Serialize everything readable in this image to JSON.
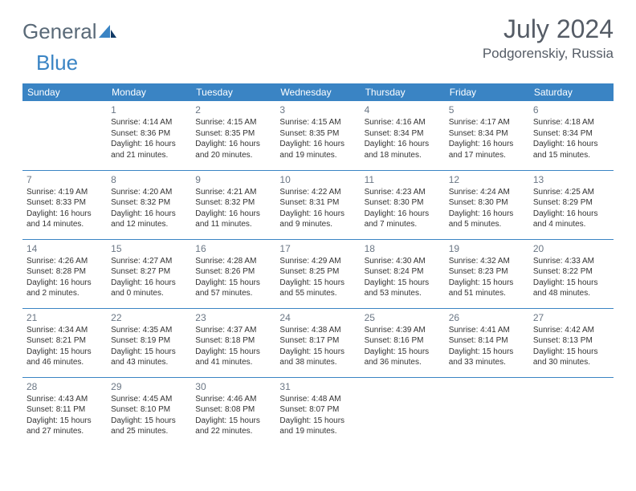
{
  "logo": {
    "text1": "General",
    "text2": "Blue"
  },
  "title": {
    "month": "July 2024",
    "location": "Podgorenskiy, Russia"
  },
  "colors": {
    "header_bg": "#3a84c4",
    "border": "#3a84c4",
    "text": "#333333",
    "muted": "#6b7785"
  },
  "daynames": [
    "Sunday",
    "Monday",
    "Tuesday",
    "Wednesday",
    "Thursday",
    "Friday",
    "Saturday"
  ],
  "weeks": [
    [
      null,
      {
        "n": "1",
        "sr": "Sunrise: 4:14 AM",
        "ss": "Sunset: 8:36 PM",
        "dl1": "Daylight: 16 hours",
        "dl2": "and 21 minutes."
      },
      {
        "n": "2",
        "sr": "Sunrise: 4:15 AM",
        "ss": "Sunset: 8:35 PM",
        "dl1": "Daylight: 16 hours",
        "dl2": "and 20 minutes."
      },
      {
        "n": "3",
        "sr": "Sunrise: 4:15 AM",
        "ss": "Sunset: 8:35 PM",
        "dl1": "Daylight: 16 hours",
        "dl2": "and 19 minutes."
      },
      {
        "n": "4",
        "sr": "Sunrise: 4:16 AM",
        "ss": "Sunset: 8:34 PM",
        "dl1": "Daylight: 16 hours",
        "dl2": "and 18 minutes."
      },
      {
        "n": "5",
        "sr": "Sunrise: 4:17 AM",
        "ss": "Sunset: 8:34 PM",
        "dl1": "Daylight: 16 hours",
        "dl2": "and 17 minutes."
      },
      {
        "n": "6",
        "sr": "Sunrise: 4:18 AM",
        "ss": "Sunset: 8:34 PM",
        "dl1": "Daylight: 16 hours",
        "dl2": "and 15 minutes."
      }
    ],
    [
      {
        "n": "7",
        "sr": "Sunrise: 4:19 AM",
        "ss": "Sunset: 8:33 PM",
        "dl1": "Daylight: 16 hours",
        "dl2": "and 14 minutes."
      },
      {
        "n": "8",
        "sr": "Sunrise: 4:20 AM",
        "ss": "Sunset: 8:32 PM",
        "dl1": "Daylight: 16 hours",
        "dl2": "and 12 minutes."
      },
      {
        "n": "9",
        "sr": "Sunrise: 4:21 AM",
        "ss": "Sunset: 8:32 PM",
        "dl1": "Daylight: 16 hours",
        "dl2": "and 11 minutes."
      },
      {
        "n": "10",
        "sr": "Sunrise: 4:22 AM",
        "ss": "Sunset: 8:31 PM",
        "dl1": "Daylight: 16 hours",
        "dl2": "and 9 minutes."
      },
      {
        "n": "11",
        "sr": "Sunrise: 4:23 AM",
        "ss": "Sunset: 8:30 PM",
        "dl1": "Daylight: 16 hours",
        "dl2": "and 7 minutes."
      },
      {
        "n": "12",
        "sr": "Sunrise: 4:24 AM",
        "ss": "Sunset: 8:30 PM",
        "dl1": "Daylight: 16 hours",
        "dl2": "and 5 minutes."
      },
      {
        "n": "13",
        "sr": "Sunrise: 4:25 AM",
        "ss": "Sunset: 8:29 PM",
        "dl1": "Daylight: 16 hours",
        "dl2": "and 4 minutes."
      }
    ],
    [
      {
        "n": "14",
        "sr": "Sunrise: 4:26 AM",
        "ss": "Sunset: 8:28 PM",
        "dl1": "Daylight: 16 hours",
        "dl2": "and 2 minutes."
      },
      {
        "n": "15",
        "sr": "Sunrise: 4:27 AM",
        "ss": "Sunset: 8:27 PM",
        "dl1": "Daylight: 16 hours",
        "dl2": "and 0 minutes."
      },
      {
        "n": "16",
        "sr": "Sunrise: 4:28 AM",
        "ss": "Sunset: 8:26 PM",
        "dl1": "Daylight: 15 hours",
        "dl2": "and 57 minutes."
      },
      {
        "n": "17",
        "sr": "Sunrise: 4:29 AM",
        "ss": "Sunset: 8:25 PM",
        "dl1": "Daylight: 15 hours",
        "dl2": "and 55 minutes."
      },
      {
        "n": "18",
        "sr": "Sunrise: 4:30 AM",
        "ss": "Sunset: 8:24 PM",
        "dl1": "Daylight: 15 hours",
        "dl2": "and 53 minutes."
      },
      {
        "n": "19",
        "sr": "Sunrise: 4:32 AM",
        "ss": "Sunset: 8:23 PM",
        "dl1": "Daylight: 15 hours",
        "dl2": "and 51 minutes."
      },
      {
        "n": "20",
        "sr": "Sunrise: 4:33 AM",
        "ss": "Sunset: 8:22 PM",
        "dl1": "Daylight: 15 hours",
        "dl2": "and 48 minutes."
      }
    ],
    [
      {
        "n": "21",
        "sr": "Sunrise: 4:34 AM",
        "ss": "Sunset: 8:21 PM",
        "dl1": "Daylight: 15 hours",
        "dl2": "and 46 minutes."
      },
      {
        "n": "22",
        "sr": "Sunrise: 4:35 AM",
        "ss": "Sunset: 8:19 PM",
        "dl1": "Daylight: 15 hours",
        "dl2": "and 43 minutes."
      },
      {
        "n": "23",
        "sr": "Sunrise: 4:37 AM",
        "ss": "Sunset: 8:18 PM",
        "dl1": "Daylight: 15 hours",
        "dl2": "and 41 minutes."
      },
      {
        "n": "24",
        "sr": "Sunrise: 4:38 AM",
        "ss": "Sunset: 8:17 PM",
        "dl1": "Daylight: 15 hours",
        "dl2": "and 38 minutes."
      },
      {
        "n": "25",
        "sr": "Sunrise: 4:39 AM",
        "ss": "Sunset: 8:16 PM",
        "dl1": "Daylight: 15 hours",
        "dl2": "and 36 minutes."
      },
      {
        "n": "26",
        "sr": "Sunrise: 4:41 AM",
        "ss": "Sunset: 8:14 PM",
        "dl1": "Daylight: 15 hours",
        "dl2": "and 33 minutes."
      },
      {
        "n": "27",
        "sr": "Sunrise: 4:42 AM",
        "ss": "Sunset: 8:13 PM",
        "dl1": "Daylight: 15 hours",
        "dl2": "and 30 minutes."
      }
    ],
    [
      {
        "n": "28",
        "sr": "Sunrise: 4:43 AM",
        "ss": "Sunset: 8:11 PM",
        "dl1": "Daylight: 15 hours",
        "dl2": "and 27 minutes."
      },
      {
        "n": "29",
        "sr": "Sunrise: 4:45 AM",
        "ss": "Sunset: 8:10 PM",
        "dl1": "Daylight: 15 hours",
        "dl2": "and 25 minutes."
      },
      {
        "n": "30",
        "sr": "Sunrise: 4:46 AM",
        "ss": "Sunset: 8:08 PM",
        "dl1": "Daylight: 15 hours",
        "dl2": "and 22 minutes."
      },
      {
        "n": "31",
        "sr": "Sunrise: 4:48 AM",
        "ss": "Sunset: 8:07 PM",
        "dl1": "Daylight: 15 hours",
        "dl2": "and 19 minutes."
      },
      null,
      null,
      null
    ]
  ]
}
